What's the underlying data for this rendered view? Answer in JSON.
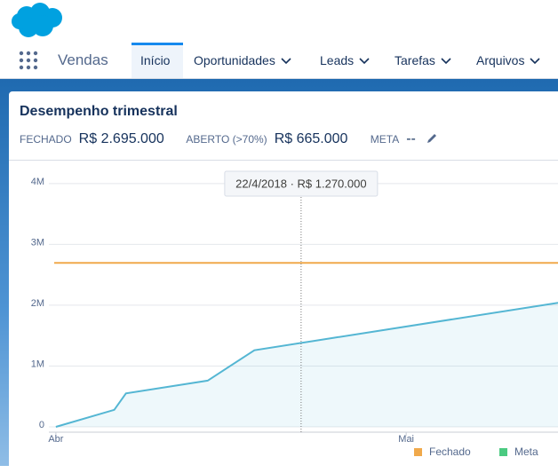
{
  "header": {
    "app": "Vendas",
    "tabs": [
      {
        "label": "Início",
        "active": true
      },
      {
        "label": "Oportunidades"
      },
      {
        "label": "Leads"
      },
      {
        "label": "Tarefas"
      },
      {
        "label": "Arquivos"
      }
    ]
  },
  "card": {
    "title": "Desempenho trimestral",
    "metrics": [
      {
        "label": "FECHADO",
        "value": "R$ 2.695.000"
      },
      {
        "label": "ABERTO (>70%)",
        "value": "R$ 665.000"
      },
      {
        "label": "META",
        "value": "--"
      }
    ]
  },
  "chart_data": {
    "type": "area",
    "x": [
      0,
      5,
      6,
      13,
      17,
      43
    ],
    "values": [
      0,
      280000,
      550000,
      760000,
      1260000,
      2040000
    ],
    "color": "#54b6d3",
    "series": [
      {
        "name": "Fechado",
        "color": "#f0a94b",
        "value": 2695000
      },
      {
        "name": "Meta",
        "color": "#4bca81",
        "value": null
      }
    ],
    "xlim": [
      -0.6,
      43
    ],
    "xticks": [
      {
        "value": 0,
        "label": "Abr"
      },
      {
        "value": 30,
        "label": "Mai"
      }
    ],
    "ylim": [
      0,
      4100000
    ],
    "yticks": [
      0,
      {
        "value": 1000000,
        "label": "1M"
      },
      {
        "value": 2000000,
        "label": "2M"
      },
      {
        "value": 3000000,
        "label": "3M"
      },
      {
        "value": 4000000,
        "label": "4M"
      }
    ],
    "grid": true,
    "tooltip": {
      "x": 21,
      "label": "22/4/2018 · R$ 1.270.000"
    }
  }
}
